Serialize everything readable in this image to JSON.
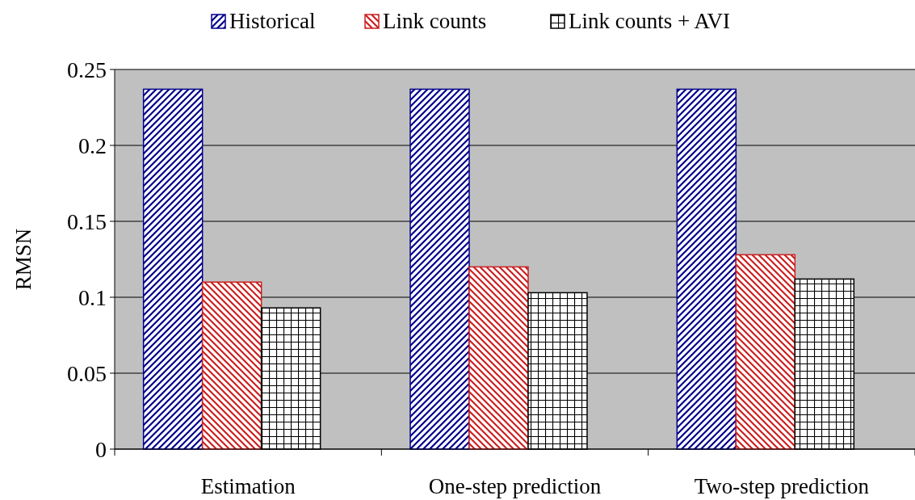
{
  "chart_data": {
    "type": "bar",
    "ylabel": "RMSN",
    "categories": [
      "Estimation",
      "One-step prediction",
      "Two-step prediction"
    ],
    "series": [
      {
        "name": "Historical",
        "color": "#00008b",
        "values": [
          0.237,
          0.237,
          0.237
        ]
      },
      {
        "name": "Link counts",
        "color": "#cc2020",
        "values": [
          0.11,
          0.12,
          0.128
        ]
      },
      {
        "name": "Link counts + AVI",
        "color": "#000000",
        "values": [
          0.093,
          0.103,
          0.112
        ]
      }
    ],
    "ylim": [
      0,
      0.25
    ],
    "yticks": [
      0,
      0.05,
      0.1,
      0.15,
      0.2,
      0.25
    ],
    "grid": "y",
    "legend": "top"
  }
}
